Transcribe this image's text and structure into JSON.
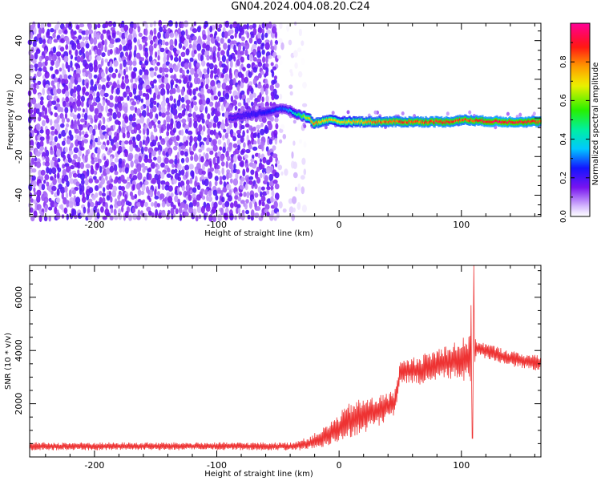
{
  "title": "GN04.2024.004.08.20.C24",
  "colors": {
    "snr_line": "#ee3333",
    "noise_purple": "#7010f0"
  },
  "chart_data": [
    {
      "type": "heatmap",
      "xlabel": "Height of straight line (km)",
      "ylabel": "Frequency (Hz)",
      "xlim": [
        -253,
        165
      ],
      "ylim": [
        -51,
        49
      ],
      "x_ticks": [
        -200,
        -100,
        0,
        100
      ],
      "y_ticks": [
        -40,
        -20,
        0,
        20,
        40
      ],
      "colorbar": {
        "label": "Normalized spectral amplitude",
        "ticks": [
          0.0,
          0.2,
          0.4,
          0.6,
          0.8
        ],
        "tick_labels": [
          "0.0",
          "0.2",
          "0.4",
          "0.6",
          "0.8"
        ],
        "range": [
          0,
          1
        ],
        "colormap": "rainbow (purple-blue-cyan-green-yellow-orange-red-magenta)"
      },
      "regions": [
        {
          "from_km": -253,
          "to_km": -50,
          "description": "broadband noise",
          "amplitude": [
            0.05,
            0.2
          ]
        },
        {
          "from_km": -50,
          "to_km": -30,
          "description": "sparse noise",
          "amplitude": [
            0.0,
            0.1
          ]
        }
      ],
      "ridge": [
        {
          "x": -90,
          "freq": 0,
          "amplitude": 0.15
        },
        {
          "x": -60,
          "freq": 3,
          "amplitude": 0.25
        },
        {
          "x": -45,
          "freq": 5,
          "amplitude": 0.3
        },
        {
          "x": -35,
          "freq": 2,
          "amplitude": 0.45
        },
        {
          "x": -25,
          "freq": 0,
          "amplitude": 0.7
        },
        {
          "x": -20,
          "freq": -3,
          "amplitude": 0.8
        },
        {
          "x": -10,
          "freq": -1,
          "amplitude": 0.75
        },
        {
          "x": 0,
          "freq": -2,
          "amplitude": 0.7
        },
        {
          "x": 40,
          "freq": -2,
          "amplitude": 0.85
        },
        {
          "x": 90,
          "freq": -2,
          "amplitude": 0.9
        },
        {
          "x": 100,
          "freq": -1,
          "amplitude": 0.85
        },
        {
          "x": 130,
          "freq": -2,
          "amplitude": 0.95
        },
        {
          "x": 165,
          "freq": -2,
          "amplitude": 0.9
        }
      ]
    },
    {
      "type": "line",
      "xlabel": "Height of straight line (km)",
      "ylabel": "SNR (10 * v/v)",
      "xlim": [
        -253,
        165
      ],
      "ylim": [
        0,
        7200
      ],
      "x_ticks": [
        -200,
        -100,
        0,
        100
      ],
      "y_ticks": [
        2000,
        4000,
        6000
      ],
      "series": [
        {
          "color": "#ee3333",
          "envelope": [
            {
              "x": -253,
              "mean": 400,
              "amp": 150
            },
            {
              "x": -40,
              "mean": 400,
              "amp": 150
            },
            {
              "x": -25,
              "mean": 500,
              "amp": 250
            },
            {
              "x": -10,
              "mean": 800,
              "amp": 400
            },
            {
              "x": 10,
              "mean": 1400,
              "amp": 700
            },
            {
              "x": 30,
              "mean": 1700,
              "amp": 600
            },
            {
              "x": 45,
              "mean": 2000,
              "amp": 500
            },
            {
              "x": 50,
              "mean": 3200,
              "amp": 400
            },
            {
              "x": 70,
              "mean": 3300,
              "amp": 600
            },
            {
              "x": 90,
              "mean": 3600,
              "amp": 700
            },
            {
              "x": 108,
              "mean": 3700,
              "amp": 900
            },
            {
              "x": 112,
              "mean": 4100,
              "amp": 300
            },
            {
              "x": 140,
              "mean": 3700,
              "amp": 300
            },
            {
              "x": 165,
              "mean": 3500,
              "amp": 300
            }
          ],
          "spikes": [
            {
              "x": 108,
              "value": 5700
            },
            {
              "x": 110,
              "value": 7200
            },
            {
              "x": 109,
              "value": 700
            }
          ]
        }
      ]
    }
  ]
}
